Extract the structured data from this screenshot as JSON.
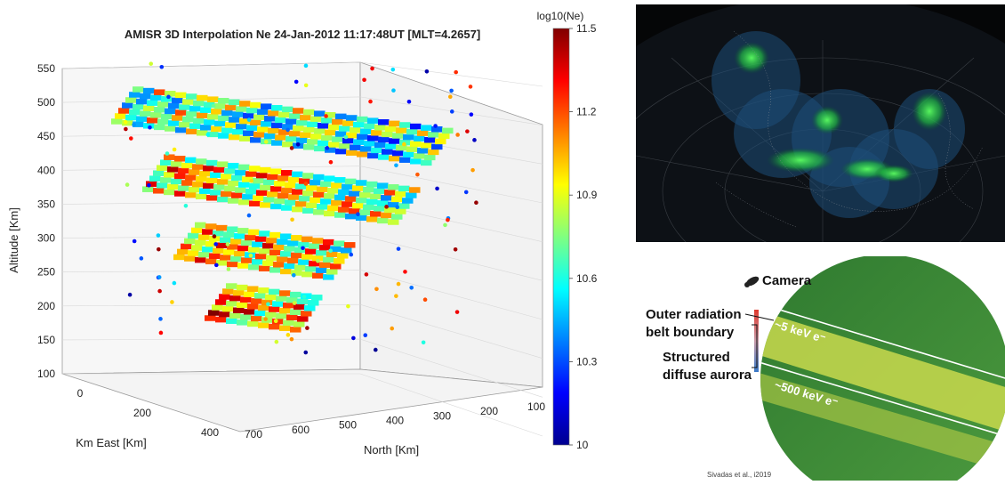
{
  "chart_data": {
    "type": "scatter",
    "title": "AMISR 3D Interpolation Ne 24-Jan-2012 11:17:48UT [MLT=4.2657]",
    "xlabel": "Km East [Km]",
    "ylabel": "North [Km]",
    "zlabel": "Altitude [Km]",
    "x_ticks": [
      "0",
      "200",
      "400"
    ],
    "y_ticks": [
      "700",
      "600",
      "500",
      "400",
      "300",
      "200",
      "100"
    ],
    "z_ticks": [
      "100",
      "150",
      "200",
      "250",
      "300",
      "350",
      "400",
      "450",
      "500",
      "550"
    ],
    "zlim": [
      100,
      550
    ],
    "colorbar": {
      "label": "log10(Ne)",
      "range": [
        10,
        11.5
      ],
      "ticks": [
        "11.5",
        "11.2",
        "10.9",
        "10.6",
        "10.3",
        "10"
      ]
    },
    "colormap": [
      "#00008f",
      "#0000ff",
      "#0080ff",
      "#00ffff",
      "#80ff80",
      "#ffff00",
      "#ff8000",
      "#ff0000",
      "#800000"
    ],
    "grid": true,
    "slices": [
      {
        "altitude": 450,
        "north_range": [
          150,
          650
        ],
        "mean_log_ne": 10.8
      },
      {
        "altitude": 350,
        "north_range": [
          200,
          600
        ],
        "mean_log_ne": 11.0
      },
      {
        "altitude": 250,
        "north_range": [
          250,
          500
        ],
        "mean_log_ne": 11.05
      },
      {
        "altitude": 160,
        "north_range": [
          300,
          450
        ],
        "mean_log_ne": 11.1
      }
    ]
  },
  "aurora_panel": {
    "colors": {
      "background": "#050607",
      "aurora": "#2fe04a",
      "coverage": "#1d4f7a"
    }
  },
  "camera_panel": {
    "camera_label": "Camera",
    "outer_boundary_label_line1": "Outer radiation",
    "outer_boundary_label_line2": "belt boundary",
    "diffuse_label_line1": "Structured",
    "diffuse_label_line2": "diffuse aurora",
    "energy_low_label": "~5 keV e⁻",
    "energy_high_label": "~500 keV e⁻",
    "citation": "Sivadas et al., i2019",
    "icon": "camera-icon",
    "colors": {
      "sky": "#3f8a3a",
      "band": "#c8d94a"
    }
  }
}
